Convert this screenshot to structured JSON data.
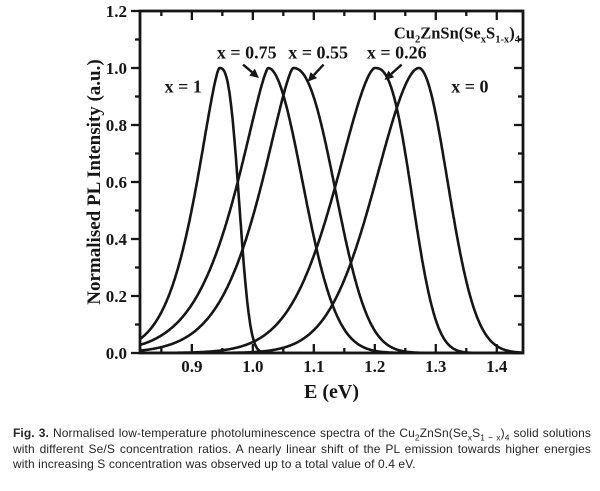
{
  "figure": {
    "caption_segments": [
      {
        "t": "Fig. 3.",
        "bold": true
      },
      {
        "t": " Normalised low-temperature photoluminescence spectra of the Cu"
      },
      {
        "t": "2",
        "sub": true
      },
      {
        "t": "ZnSn(Se"
      },
      {
        "t": "x",
        "sub": true
      },
      {
        "t": "S"
      },
      {
        "t": "1 − x",
        "sub": true
      },
      {
        "t": ")"
      },
      {
        "t": "4",
        "sub": true
      },
      {
        "t": " solid solutions with different Se/S concentration ratios. A nearly linear shift of the PL emission towards higher energies with increasing S concentration was observed up to a total value of 0.4 eV."
      }
    ]
  },
  "chart_data": {
    "type": "line",
    "title_parts": [
      {
        "t": "Cu"
      },
      {
        "t": "2",
        "sub": true
      },
      {
        "t": "ZnSn(Se"
      },
      {
        "t": "x",
        "sub": true
      },
      {
        "t": "S"
      },
      {
        "t": "1-x",
        "sub": true
      },
      {
        "t": ")"
      },
      {
        "t": "4",
        "sub": true
      }
    ],
    "title_pos": {
      "x": 1.438,
      "y": 1.125,
      "anchor": "end"
    },
    "xlabel": "E (eV)",
    "ylabel": "Normalised PL Intensity (a.u.)",
    "xlim": [
      0.815,
      1.443
    ],
    "ylim": [
      0,
      1.2
    ],
    "x_major_ticks": [
      0.9,
      1.0,
      1.1,
      1.2,
      1.3,
      1.4
    ],
    "x_minor_step": 0.05,
    "y_major_ticks": [
      0.0,
      0.2,
      0.4,
      0.6,
      0.8,
      1.0,
      1.2
    ],
    "y_minor_step": 0.1,
    "tick_label_format": 1,
    "grid": false,
    "line_color": "#161616",
    "series": [
      {
        "label": "x = 1",
        "peak_eV": 0.945,
        "amplitude": 1.0,
        "fwhm_eV": 0.08,
        "shape": {
          "sigma_left": 0.036,
          "power_left": 1.4,
          "sigma_right": 0.03,
          "power_right": 2.9
        }
      },
      {
        "label": "x = 0.75",
        "peak_eV": 1.025,
        "amplitude": 1.0,
        "fwhm_eV": 0.13,
        "shape": {
          "sigma_left": 0.049,
          "power_left": 1.35,
          "sigma_right": 0.056,
          "power_right": 2.0
        }
      },
      {
        "label": "x = 0.55",
        "peak_eV": 1.066,
        "amplitude": 1.0,
        "fwhm_eV": 0.14,
        "shape": {
          "sigma_left": 0.05,
          "power_left": 1.4,
          "sigma_right": 0.066,
          "power_right": 2.3
        }
      },
      {
        "label": "x = 0.26",
        "peak_eV": 1.2,
        "amplitude": 1.0,
        "fwhm_eV": 0.14,
        "shape": {
          "sigma_left": 0.062,
          "power_left": 1.6,
          "sigma_right": 0.057,
          "power_right": 2.6
        }
      },
      {
        "label": "x = 0",
        "peak_eV": 1.272,
        "amplitude": 1.0,
        "fwhm_eV": 0.14,
        "shape": {
          "sigma_left": 0.07,
          "power_left": 1.8,
          "sigma_right": 0.047,
          "power_right": 2.0
        }
      }
    ],
    "annotations": [
      {
        "text": "x = 1",
        "x": 0.886,
        "y": 0.935
      },
      {
        "text": "x = 0.75",
        "x": 0.99,
        "y": 1.055,
        "arrow": {
          "x1": 0.984,
          "y1": 1.012,
          "x2": 1.01,
          "y2": 0.965
        }
      },
      {
        "text": "x = 0.55",
        "x": 1.107,
        "y": 1.055,
        "arrow": {
          "x1": 1.116,
          "y1": 1.012,
          "x2": 1.09,
          "y2": 0.952
        }
      },
      {
        "text": "x = 0.26",
        "x": 1.236,
        "y": 1.055,
        "arrow": {
          "x1": 1.244,
          "y1": 1.012,
          "x2": 1.216,
          "y2": 0.958
        }
      },
      {
        "text": "x = 0",
        "x": 1.356,
        "y": 0.935
      }
    ],
    "legend": "none"
  }
}
